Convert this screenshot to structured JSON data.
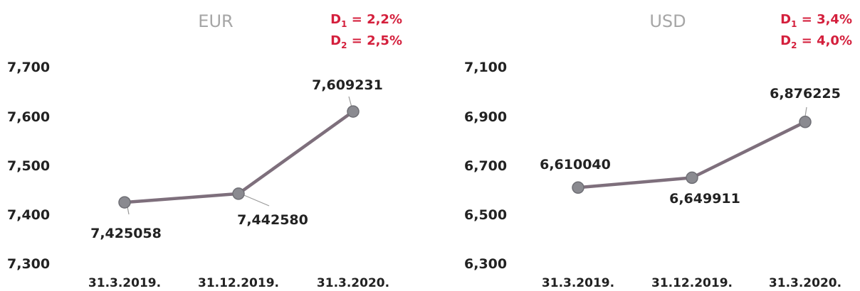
{
  "chart_data": [
    {
      "type": "line",
      "title": "EUR",
      "categories": [
        "31.3.2019.",
        "31.12.2019.",
        "31.3.2020."
      ],
      "series": [
        {
          "values": [
            7.425058,
            7.44258,
            7.609231
          ]
        }
      ],
      "data_labels": [
        "7,425058",
        "7,442580",
        "7,609231"
      ],
      "ylim": [
        7.3,
        7.7
      ],
      "yticks": [
        "7,700",
        "7,600",
        "7,500",
        "7,400",
        "7,300"
      ],
      "annotations": [
        {
          "var": "D",
          "sub": "1",
          "rest": " = 2,2%"
        },
        {
          "var": "D",
          "sub": "2",
          "rest": " = 2,5%"
        }
      ],
      "line_color": "#7e6f7c",
      "annotation_color": "#d41f3c",
      "grid": false
    },
    {
      "type": "line",
      "title": "USD",
      "categories": [
        "31.3.2019.",
        "31.12.2019.",
        "31.3.2020."
      ],
      "series": [
        {
          "values": [
            6.61004,
            6.649911,
            6.876225
          ]
        }
      ],
      "data_labels": [
        "6,610040",
        "6,649911",
        "6,876225"
      ],
      "ylim": [
        6.3,
        7.1
      ],
      "yticks": [
        "7,100",
        "6,900",
        "6,700",
        "6,500",
        "6,300"
      ],
      "annotations": [
        {
          "var": "D",
          "sub": "1",
          "rest": " = 3,4%"
        },
        {
          "var": "D",
          "sub": "2",
          "rest": " = 4,0%"
        }
      ],
      "line_color": "#7e6f7c",
      "annotation_color": "#d41f3c",
      "grid": false
    }
  ]
}
